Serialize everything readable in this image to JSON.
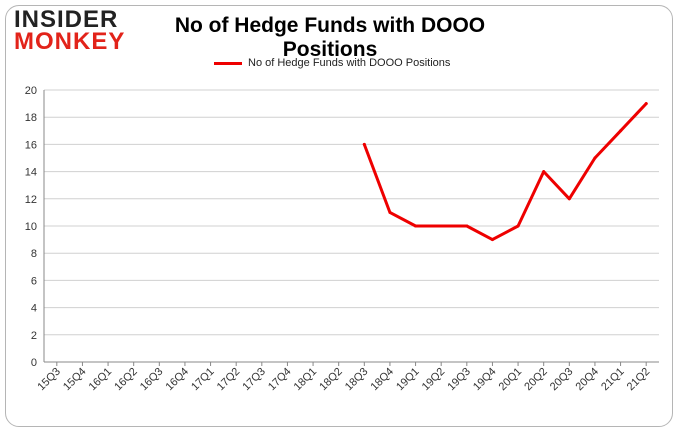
{
  "brand": {
    "logo_top": "INSIDER",
    "logo_bottom": "MONKEY"
  },
  "chart_data": {
    "type": "line",
    "title": "No of Hedge Funds with DOOO Positions",
    "xlabel": "",
    "ylabel": "",
    "categories": [
      "15Q3",
      "15Q4",
      "16Q1",
      "16Q2",
      "16Q3",
      "16Q4",
      "17Q1",
      "17Q2",
      "17Q3",
      "17Q4",
      "18Q1",
      "18Q2",
      "18Q3",
      "18Q4",
      "19Q1",
      "19Q2",
      "19Q3",
      "19Q4",
      "20Q1",
      "20Q2",
      "20Q3",
      "20Q4",
      "21Q1",
      "21Q2"
    ],
    "series": [
      {
        "name": "No of Hedge Funds with DOOO Positions",
        "color": "#ee0000",
        "values": [
          null,
          null,
          null,
          null,
          null,
          null,
          null,
          null,
          null,
          null,
          null,
          null,
          16,
          11,
          10,
          10,
          10,
          9,
          10,
          14,
          12,
          15,
          17,
          19
        ]
      }
    ],
    "ylim": [
      0,
      20
    ],
    "yticks": [
      0,
      2,
      4,
      6,
      8,
      10,
      12,
      14,
      16,
      18,
      20
    ],
    "grid": true,
    "legend_position": "top"
  }
}
